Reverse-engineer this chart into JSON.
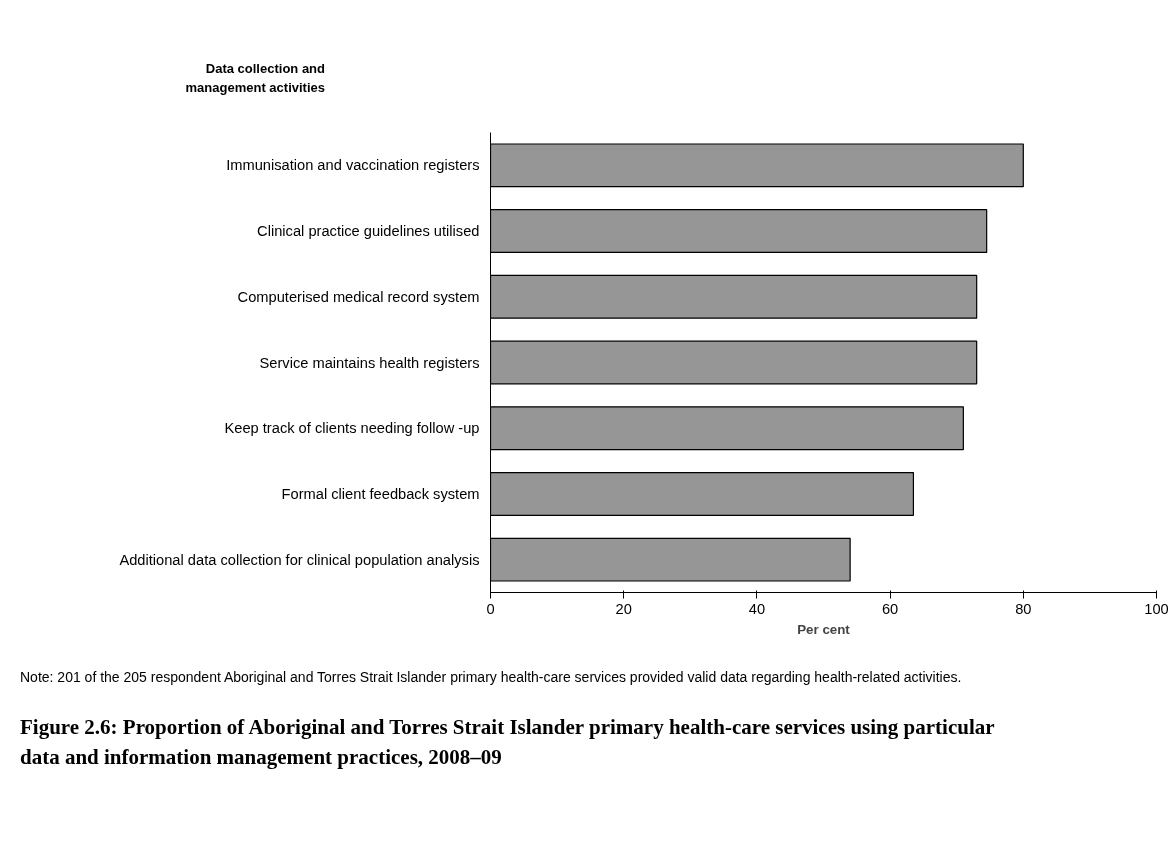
{
  "chart_data": {
    "type": "bar",
    "orientation": "horizontal",
    "title": "Figure 2.6: Proportion of Aboriginal and Torres Strait Islander primary health-care services using particular data and information management practices, 2008–09",
    "ylabel": "Data collection and management activities",
    "xlabel": "Per cent",
    "categories": [
      "Immunisation and vaccination registers",
      "Clinical practice guidelines utilised",
      "Computerised medical record system",
      "Service maintains health registers",
      "Keep track of clients needing follow -up",
      "Formal client feedback system",
      "Additional data collection for clinical population analysis"
    ],
    "values": [
      80,
      74.5,
      73,
      73,
      71,
      63.5,
      54
    ],
    "color": "#969696",
    "xlim": [
      0,
      100
    ],
    "xticks": [
      0,
      20,
      40,
      60,
      80,
      100
    ],
    "grid": false,
    "annotations": [
      "Note: 201 of the 205 respondent Aboriginal and Torres Strait Islander primary health-care services provided valid data regarding health-related activities."
    ]
  }
}
